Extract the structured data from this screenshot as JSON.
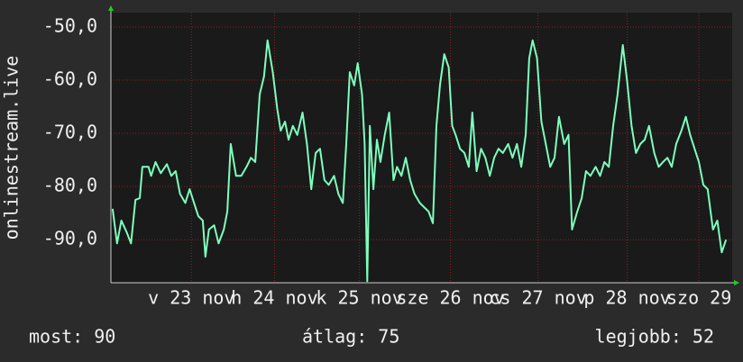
{
  "chart_data": {
    "type": "line",
    "ylabel": "onlinestream.live",
    "color": "#7dffbe",
    "grid": true,
    "xlim": [
      0,
      7.1
    ],
    "xticks": [
      {
        "value": 0.92,
        "label": "v 23 nov"
      },
      {
        "value": 1.87,
        "label": "h 24 nov"
      },
      {
        "value": 2.84,
        "label": "k 25 nov"
      },
      {
        "value": 3.88,
        "label": "sze 26 nov"
      },
      {
        "value": 4.88,
        "label": "cs 27 nov"
      },
      {
        "value": 5.9,
        "label": "p 28 nov"
      },
      {
        "value": 6.72,
        "label": "szo 29"
      }
    ],
    "ylim": [
      -98.1,
      -47.3
    ],
    "yticks": [
      {
        "value": -50,
        "label": "-50,0"
      },
      {
        "value": -60,
        "label": "-60,0"
      },
      {
        "value": -70,
        "label": "-70,0"
      },
      {
        "value": -80,
        "label": "-80,0"
      },
      {
        "value": -90,
        "label": "-90,0"
      }
    ],
    "x": [
      0.02,
      0.07,
      0.12,
      0.18,
      0.23,
      0.28,
      0.33,
      0.36,
      0.43,
      0.46,
      0.51,
      0.57,
      0.64,
      0.69,
      0.74,
      0.79,
      0.85,
      0.9,
      0.95,
      1.0,
      1.05,
      1.08,
      1.12,
      1.18,
      1.23,
      1.29,
      1.33,
      1.37,
      1.43,
      1.49,
      1.55,
      1.6,
      1.65,
      1.7,
      1.75,
      1.79,
      1.85,
      1.9,
      1.94,
      1.99,
      2.03,
      2.08,
      2.13,
      2.19,
      2.24,
      2.29,
      2.34,
      2.39,
      2.44,
      2.49,
      2.55,
      2.6,
      2.65,
      2.69,
      2.73,
      2.78,
      2.82,
      2.87,
      2.9,
      2.93,
      2.96,
      3.0,
      3.04,
      3.08,
      3.13,
      3.18,
      3.23,
      3.27,
      3.32,
      3.37,
      3.42,
      3.47,
      3.53,
      3.58,
      3.63,
      3.68,
      3.72,
      3.76,
      3.81,
      3.86,
      3.9,
      3.94,
      3.99,
      4.04,
      4.09,
      4.13,
      4.18,
      4.23,
      4.28,
      4.33,
      4.38,
      4.43,
      4.48,
      4.54,
      4.59,
      4.64,
      4.69,
      4.74,
      4.78,
      4.82,
      4.87,
      4.92,
      4.97,
      5.02,
      5.07,
      5.12,
      5.18,
      5.23,
      5.27,
      5.33,
      5.38,
      5.43,
      5.48,
      5.54,
      5.59,
      5.64,
      5.69,
      5.74,
      5.79,
      5.85,
      5.9,
      5.95,
      6.0,
      6.05,
      6.1,
      6.15,
      6.21,
      6.26,
      6.31,
      6.36,
      6.41,
      6.46,
      6.52,
      6.57,
      6.62,
      6.67,
      6.72,
      6.77,
      6.82,
      6.88,
      6.93,
      6.98,
      7.03
    ],
    "values": [
      -84.2,
      -90.7,
      -86.4,
      -88.6,
      -90.7,
      -82.5,
      -82.2,
      -76.3,
      -76.3,
      -78.0,
      -75.4,
      -77.5,
      -75.8,
      -78.0,
      -77.1,
      -81.4,
      -83.1,
      -80.5,
      -83.1,
      -85.6,
      -86.4,
      -93.2,
      -88.1,
      -87.3,
      -90.7,
      -88.1,
      -84.7,
      -72.0,
      -78.0,
      -78.0,
      -76.3,
      -74.6,
      -75.4,
      -62.7,
      -59.3,
      -52.5,
      -58.5,
      -65.3,
      -69.5,
      -67.8,
      -71.2,
      -68.6,
      -70.3,
      -66.1,
      -72.0,
      -80.5,
      -73.7,
      -72.9,
      -78.8,
      -79.7,
      -78.0,
      -81.4,
      -83.1,
      -72.0,
      -58.5,
      -61.0,
      -56.8,
      -62.7,
      -72.0,
      -97.8,
      -68.6,
      -80.5,
      -71.2,
      -75.4,
      -70.3,
      -66.1,
      -78.8,
      -76.3,
      -78.0,
      -74.6,
      -78.8,
      -81.4,
      -83.1,
      -83.9,
      -84.7,
      -86.9,
      -68.6,
      -61.0,
      -55.1,
      -57.6,
      -68.6,
      -70.3,
      -72.9,
      -73.7,
      -76.3,
      -66.1,
      -77.1,
      -72.9,
      -74.6,
      -78.0,
      -74.6,
      -72.9,
      -73.7,
      -72.0,
      -74.6,
      -72.0,
      -76.3,
      -70.3,
      -55.9,
      -52.5,
      -55.9,
      -67.8,
      -72.0,
      -76.3,
      -74.6,
      -66.9,
      -72.0,
      -70.3,
      -88.1,
      -84.7,
      -82.2,
      -77.1,
      -78.0,
      -76.3,
      -78.0,
      -75.4,
      -76.3,
      -68.6,
      -62.7,
      -53.4,
      -60.2,
      -68.6,
      -73.7,
      -72.0,
      -71.2,
      -68.6,
      -73.7,
      -76.3,
      -75.4,
      -74.6,
      -76.3,
      -72.0,
      -69.5,
      -66.9,
      -70.3,
      -72.9,
      -75.4,
      -79.7,
      -80.5,
      -88.1,
      -86.4,
      -92.4,
      -90.0
    ]
  },
  "stats": [
    "most: 90",
    "átlag: 75",
    "legjobb: 52"
  ]
}
